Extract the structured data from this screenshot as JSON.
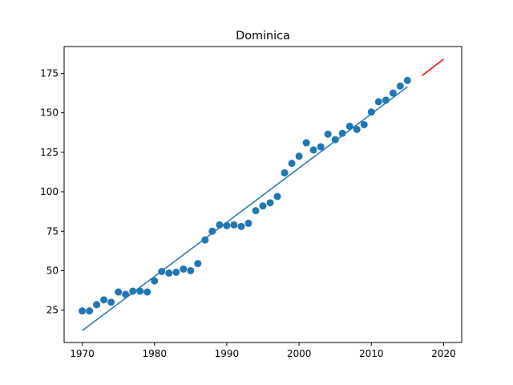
{
  "chart_data": {
    "type": "scatter",
    "title": "Dominica",
    "xlabel": "",
    "ylabel": "",
    "xlim": [
      1967.5,
      2022.5
    ],
    "ylim": [
      4.5,
      192.0
    ],
    "x_ticks": [
      1970,
      1980,
      1990,
      2000,
      2010,
      2020
    ],
    "y_ticks": [
      25,
      50,
      75,
      100,
      125,
      150,
      175
    ],
    "grid": false,
    "legend": "none",
    "points": {
      "color": "#1f77b4",
      "x": [
        1970,
        1971,
        1972,
        1973,
        1974,
        1975,
        1976,
        1977,
        1978,
        1979,
        1980,
        1981,
        1982,
        1983,
        1984,
        1985,
        1986,
        1987,
        1988,
        1989,
        1990,
        1991,
        1992,
        1993,
        1994,
        1995,
        1996,
        1997,
        1998,
        1999,
        2000,
        2001,
        2002,
        2003,
        2004,
        2005,
        2006,
        2007,
        2008,
        2009,
        2010,
        2011,
        2012,
        2013,
        2014,
        2015
      ],
      "y": [
        24.5,
        24.5,
        28.5,
        31.5,
        30,
        36.5,
        35,
        37,
        37,
        36.5,
        43.5,
        49.5,
        48.5,
        49,
        51,
        50,
        54.5,
        69.5,
        75,
        79,
        78.5,
        79,
        78,
        80,
        88,
        91,
        93,
        97,
        112,
        118,
        122.5,
        131,
        126.5,
        128.5,
        136.5,
        133,
        137,
        141.5,
        139.5,
        142.5,
        150.5,
        157,
        158,
        162.5,
        167,
        170.5
      ]
    },
    "fit_line": {
      "color": "#1f77b4",
      "x": [
        1970,
        2015
      ],
      "y": [
        12,
        166.5
      ]
    },
    "forecast_line": {
      "color": "#ff0000",
      "x": [
        2017,
        2020
      ],
      "y": [
        173.5,
        184
      ]
    }
  }
}
